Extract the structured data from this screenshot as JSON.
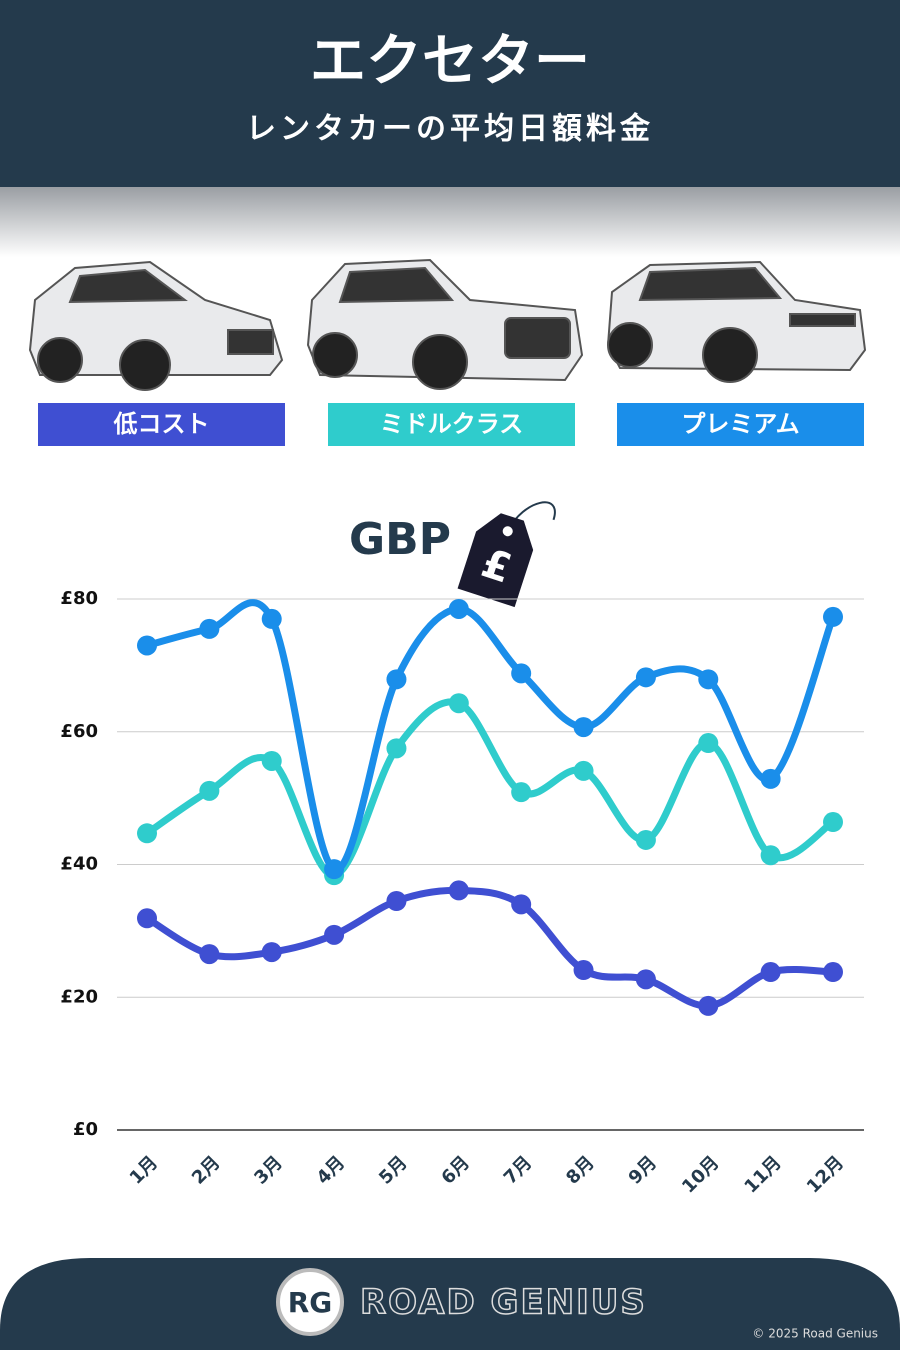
{
  "header": {
    "title": "エクセター",
    "subtitle": "レンタカーの平均日額料金"
  },
  "chart_data": {
    "type": "line",
    "unit_label": "GBP",
    "currency_symbol": "£",
    "categories": [
      "1月",
      "2月",
      "3月",
      "4月",
      "5月",
      "6月",
      "7月",
      "8月",
      "9月",
      "10月",
      "11月",
      "12月"
    ],
    "series": [
      {
        "name": "低コスト",
        "color": "#3f4fd2",
        "values": [
          31.9,
          26.5,
          26.8,
          29.4,
          34.5,
          36.1,
          34.0,
          24.1,
          22.7,
          18.7,
          23.8,
          23.8
        ]
      },
      {
        "name": "ミドルクラス",
        "color": "#2fcccc",
        "values": [
          44.7,
          51.1,
          55.6,
          38.4,
          57.5,
          64.3,
          50.9,
          54.1,
          43.7,
          58.3,
          41.4,
          46.4
        ]
      },
      {
        "name": "プレミアム",
        "color": "#1a8eea",
        "values": [
          73.0,
          75.5,
          77.0,
          39.3,
          67.9,
          78.5,
          68.8,
          60.7,
          68.2,
          67.9,
          52.9,
          77.3
        ]
      }
    ],
    "ylim": [
      0,
      80
    ],
    "yticks": [
      {
        "value": 0,
        "label": "£0"
      },
      {
        "value": 20,
        "label": "£20"
      },
      {
        "value": 40,
        "label": "£40"
      },
      {
        "value": 60,
        "label": "£60"
      },
      {
        "value": 80,
        "label": "£80"
      }
    ],
    "grid": true,
    "smooth": true
  },
  "footer": {
    "logo": "RG",
    "brand": "ROAD GENIUS",
    "copyright": "© 2025 Road Genius"
  }
}
